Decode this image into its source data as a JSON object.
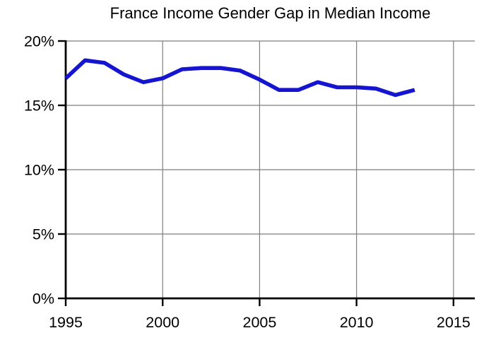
{
  "chart_data": {
    "type": "line",
    "title": "France Income Gender Gap in Median Income",
    "xlabel": "",
    "ylabel": "",
    "x": [
      1995,
      1996,
      1997,
      1998,
      1999,
      2000,
      2001,
      2002,
      2003,
      2004,
      2005,
      2006,
      2007,
      2008,
      2009,
      2010,
      2011,
      2012,
      2013
    ],
    "values": [
      17.1,
      18.5,
      18.3,
      17.4,
      16.8,
      17.1,
      17.8,
      17.9,
      17.9,
      17.7,
      17.0,
      16.2,
      16.2,
      16.8,
      16.4,
      16.4,
      16.3,
      15.8,
      16.2
    ],
    "series_name": "France income gender gap",
    "xlim": [
      1995,
      2016.1
    ],
    "ylim": [
      0,
      20
    ],
    "xticks": [
      1995,
      2000,
      2005,
      2010,
      2015
    ],
    "yticks": [
      0,
      5,
      10,
      15,
      20
    ],
    "ytick_suffix": "%",
    "grid": true,
    "legend": "none",
    "line_color": "#1515d0",
    "grid_color": "#7f7f7f",
    "axis_color": "#000000",
    "text_color": "#000000",
    "background": "#ffffff"
  }
}
